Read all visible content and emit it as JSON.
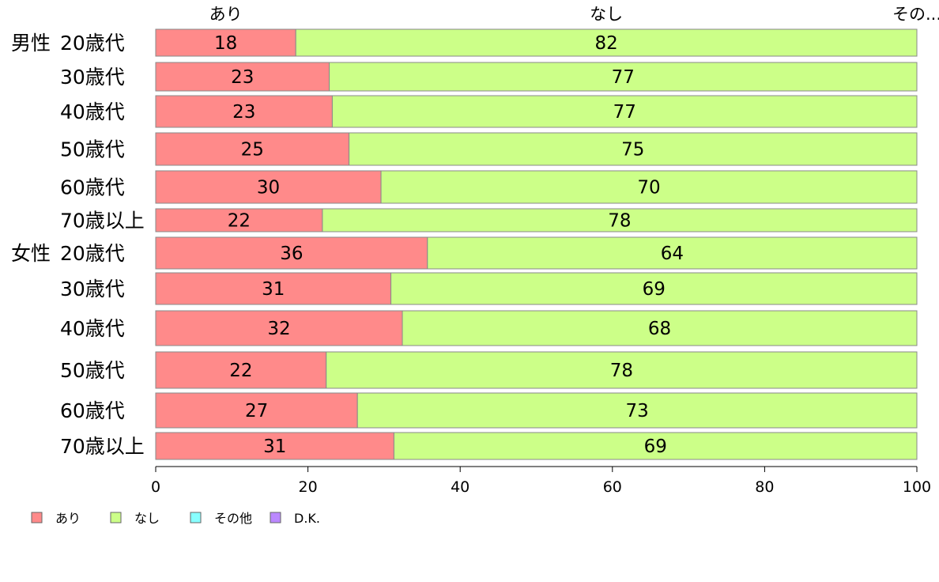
{
  "chart_data": {
    "type": "bar",
    "orientation": "horizontal",
    "stacked": true,
    "groups": [
      {
        "label": "男性",
        "categories": [
          "20歳代",
          "30歳代",
          "40歳代",
          "50歳代",
          "60歳代",
          "70歳以上"
        ]
      },
      {
        "label": "女性",
        "categories": [
          "20歳代",
          "30歳代",
          "40歳代",
          "50歳代",
          "60歳代",
          "70歳以上"
        ]
      }
    ],
    "series": [
      {
        "name": "あり",
        "color": "#ff8a8a",
        "values": [
          18.4,
          22.8,
          23.2,
          25.4,
          29.6,
          21.9,
          35.7,
          30.9,
          32.4,
          22.4,
          26.5,
          31.3
        ],
        "labels": [
          "18",
          "23",
          "23",
          "25",
          "30",
          "22",
          "36",
          "31",
          "32",
          "22",
          "27",
          "31"
        ]
      },
      {
        "name": "なし",
        "color": "#ccff88",
        "values": [
          81.6,
          77.2,
          76.8,
          74.6,
          70.4,
          78.1,
          64.3,
          69.1,
          67.6,
          77.6,
          73.5,
          68.7
        ],
        "labels": [
          "82",
          "77",
          "77",
          "75",
          "70",
          "78",
          "64",
          "69",
          "68",
          "78",
          "73",
          "69"
        ]
      },
      {
        "name": "その他",
        "color": "#88ffff",
        "values": [
          0,
          0,
          0,
          0,
          0,
          0,
          0,
          0,
          0,
          0,
          0,
          0
        ]
      },
      {
        "name": "D.K.",
        "color": "#bb88ff",
        "values": [
          0,
          0,
          0,
          0,
          0,
          0,
          0,
          0,
          0,
          0,
          0,
          0
        ]
      }
    ],
    "top_labels": [
      "あり",
      "なし",
      "その..."
    ],
    "xlim": [
      0,
      100
    ],
    "xticks": [
      0,
      20,
      40,
      60,
      80,
      100
    ],
    "legend_position": "bottom-left",
    "grid": false
  }
}
